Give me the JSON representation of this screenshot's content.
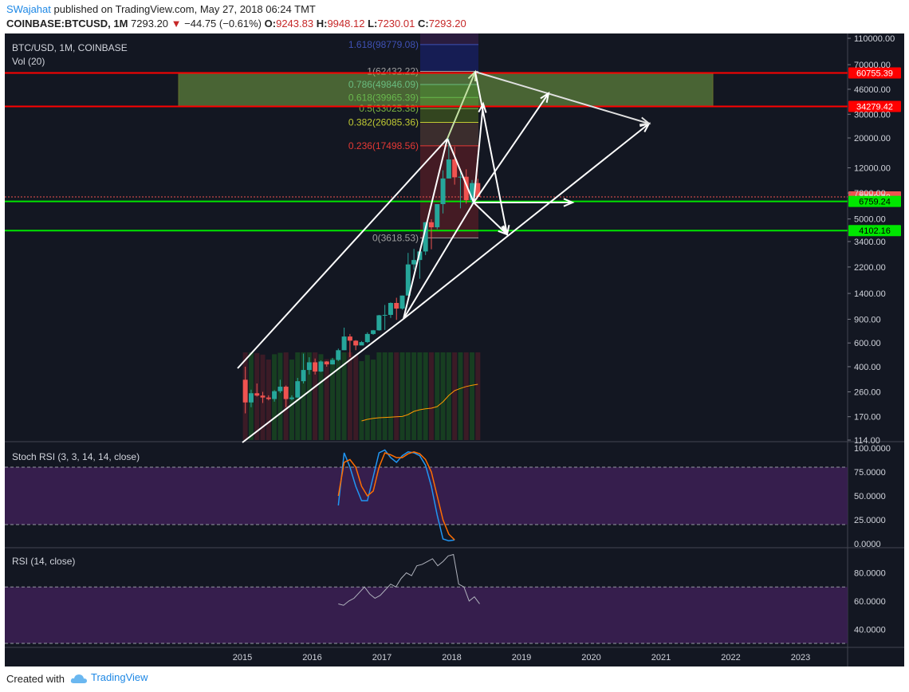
{
  "header": {
    "author": "SWajahat",
    "published": "published on TradingView.com, May 27, 2018 06:24 TMT",
    "symbol": "COINBASE:BTCUSD, 1M",
    "price": "7293.20",
    "change": "−44.75 (−0.61%)",
    "o_label": "O:",
    "o_value": "9243.83",
    "h_label": "H:",
    "h_value": "9948.12",
    "l_label": "L:",
    "l_value": "7230.01",
    "c_label": "C:",
    "c_value": "7293.20"
  },
  "main_pane": {
    "title": "BTC/USD, 1M, COINBASE",
    "volume_label": "Vol (20)",
    "price_axis": [
      "110000.00",
      "70000.00",
      "46000.00",
      "30000.00",
      "20000.00",
      "12000.00",
      "7800.00",
      "5000.00",
      "3400.00",
      "2200.00",
      "1400.00",
      "900.00",
      "600.00",
      "400.00",
      "260.00",
      "170.00",
      "114.00"
    ],
    "levels": [
      {
        "label": "60755.39",
        "color": "#ff0000"
      },
      {
        "label": "34279.42",
        "color": "#ff0000"
      },
      {
        "label": "7293.20",
        "color": "#ef5350"
      },
      {
        "label": "6759.24",
        "color": "#00e600"
      },
      {
        "label": "4102.16",
        "color": "#00e600"
      }
    ],
    "fib": [
      {
        "label": "1.618(98779.08)",
        "color": "#3f51b5"
      },
      {
        "label": "1(62432.22)",
        "color": "#9e9e9e"
      },
      {
        "label": "0.786(49846.09)",
        "color": "#4db6ac"
      },
      {
        "label": "0.618(39965.39)",
        "color": "#4caf50"
      },
      {
        "label": "0.5(33025.38)",
        "color": "#7cb342"
      },
      {
        "label": "0.382(26085.36)",
        "color": "#c0ca33"
      },
      {
        "label": "0.236(17498.56)",
        "color": "#e53935"
      },
      {
        "label": "0(3618.53)",
        "color": "#9e9e9e"
      }
    ]
  },
  "stoch_pane": {
    "title": "Stoch RSI (3, 3, 14, 14, close)",
    "axis": [
      "100.0000",
      "75.0000",
      "50.0000",
      "25.0000",
      "0.0000"
    ]
  },
  "rsi_pane": {
    "title": "RSI (14, close)",
    "axis": [
      "80.0000",
      "60.0000",
      "40.0000"
    ]
  },
  "time_axis": [
    "2015",
    "2016",
    "2017",
    "2018",
    "2019",
    "2020",
    "2021",
    "2022",
    "2023"
  ],
  "footer": {
    "created": "Created with",
    "brand": "TradingView"
  },
  "colors": {
    "background": "#131722",
    "up": "#26a69a",
    "down": "#ef5350",
    "band": "#3b1f52",
    "accent": "#1e88e5"
  },
  "chart_data": {
    "type": "candlestick",
    "title": "BTC/USD, 1M, COINBASE",
    "scale": "log",
    "ylim": [
      114,
      110000
    ],
    "x": [
      "2015-01",
      "2015-02",
      "2015-03",
      "2015-04",
      "2015-05",
      "2015-06",
      "2015-07",
      "2015-08",
      "2015-09",
      "2015-10",
      "2015-11",
      "2015-12",
      "2016-01",
      "2016-02",
      "2016-03",
      "2016-04",
      "2016-05",
      "2016-06",
      "2016-07",
      "2016-08",
      "2016-09",
      "2016-10",
      "2016-11",
      "2016-12",
      "2017-01",
      "2017-02",
      "2017-03",
      "2017-04",
      "2017-05",
      "2017-06",
      "2017-07",
      "2017-08",
      "2017-09",
      "2017-10",
      "2017-11",
      "2017-12",
      "2018-01",
      "2018-02",
      "2018-03",
      "2018-04",
      "2018-05"
    ],
    "ohlc": [
      [
        320,
        400,
        180,
        217
      ],
      [
        217,
        270,
        200,
        254
      ],
      [
        254,
        300,
        240,
        244
      ],
      [
        244,
        260,
        215,
        236
      ],
      [
        236,
        245,
        225,
        230
      ],
      [
        230,
        268,
        220,
        263
      ],
      [
        263,
        320,
        255,
        284
      ],
      [
        284,
        290,
        200,
        230
      ],
      [
        230,
        245,
        225,
        236
      ],
      [
        236,
        330,
        235,
        312
      ],
      [
        312,
        500,
        300,
        378
      ],
      [
        378,
        470,
        350,
        431
      ],
      [
        431,
        460,
        350,
        368
      ],
      [
        368,
        445,
        365,
        437
      ],
      [
        437,
        440,
        400,
        416
      ],
      [
        416,
        465,
        415,
        449
      ],
      [
        449,
        545,
        440,
        530
      ],
      [
        530,
        780,
        530,
        670
      ],
      [
        670,
        700,
        470,
        624
      ],
      [
        624,
        630,
        530,
        575
      ],
      [
        575,
        620,
        590,
        609
      ],
      [
        609,
        720,
        600,
        700
      ],
      [
        700,
        750,
        690,
        745
      ],
      [
        745,
        970,
        740,
        963
      ],
      [
        963,
        1150,
        750,
        970
      ],
      [
        970,
        1200,
        920,
        1190
      ],
      [
        1190,
        1300,
        890,
        1080
      ],
      [
        1080,
        1350,
        1060,
        1350
      ],
      [
        1350,
        2800,
        1350,
        2300
      ],
      [
        2300,
        3000,
        2100,
        2480
      ],
      [
        2480,
        2900,
        1800,
        2870
      ],
      [
        2870,
        4750,
        2700,
        4730
      ],
      [
        4730,
        4980,
        2980,
        4340
      ],
      [
        4340,
        6450,
        4200,
        6450
      ],
      [
        6450,
        11500,
        5500,
        10000
      ],
      [
        10000,
        19800,
        10000,
        13850
      ],
      [
        13850,
        17200,
        9000,
        10200
      ],
      [
        10200,
        11800,
        6000,
        10300
      ],
      [
        10300,
        11700,
        6500,
        6900
      ],
      [
        6900,
        9750,
        6450,
        9243
      ],
      [
        9243,
        9948,
        7230,
        7293
      ]
    ],
    "volume_ma": [
      null,
      null,
      null,
      null,
      null,
      null,
      null,
      null,
      null,
      null,
      null,
      null,
      null,
      null,
      null,
      null,
      null,
      null,
      null,
      null,
      160,
      165,
      168,
      170,
      171,
      172,
      173,
      174,
      180,
      190,
      195,
      198,
      200,
      205,
      220,
      240,
      255,
      262,
      268,
      272,
      275
    ]
  }
}
